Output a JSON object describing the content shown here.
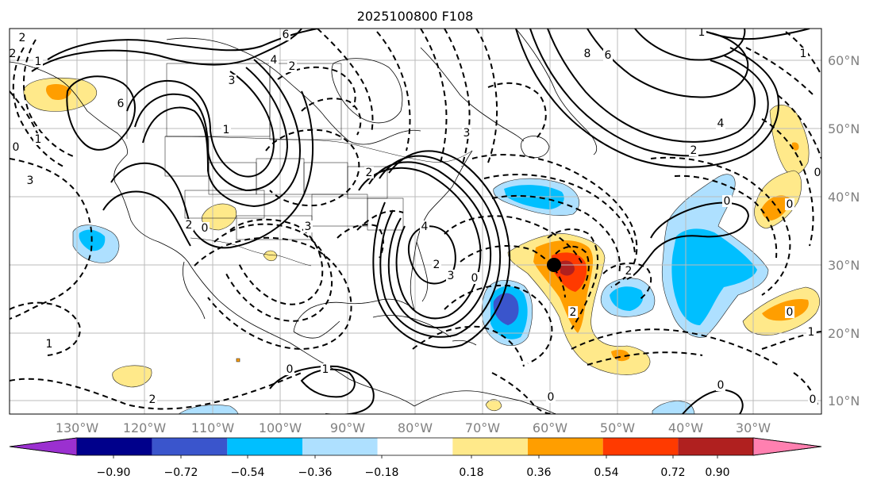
{
  "title": "2025100800 F108",
  "axes": {
    "lon_labels": [
      "130°W",
      "120°W",
      "110°W",
      "100°W",
      "90°W",
      "80°W",
      "70°W",
      "60°W",
      "50°W",
      "40°W",
      "30°W"
    ],
    "lat_labels": [
      "60°N",
      "50°N",
      "40°N",
      "30°N",
      "20°N",
      "10°N"
    ]
  },
  "colorbar": {
    "tick_labels": [
      "−0.90",
      "−0.72",
      "−0.54",
      "−0.36",
      "−0.18",
      "0.18",
      "0.36",
      "0.54",
      "0.72",
      "0.90"
    ],
    "colors": {
      "under": "#9b30d0",
      "bins": [
        "#00008b",
        "#3a55cc",
        "#00bfff",
        "#aee0ff",
        "#ffffff",
        "#ffe98a",
        "#ff9e00",
        "#ff3a00",
        "#b0201f"
      ],
      "over": "#ff80b0"
    }
  },
  "contour_labels": [
    "2",
    "1",
    "6",
    "4",
    "3",
    "2",
    "1",
    "6",
    "2",
    "0",
    "3",
    "4",
    "3",
    "2",
    "2",
    "3",
    "1",
    "8",
    "6",
    "4",
    "2",
    "1",
    "0",
    "0",
    "0",
    "2",
    "2",
    "0",
    "0",
    "1",
    "0",
    "0",
    "2",
    "1",
    "0",
    "3",
    "1",
    "0",
    "2",
    "1",
    "0"
  ],
  "marker": {
    "label": "storm-center"
  }
}
